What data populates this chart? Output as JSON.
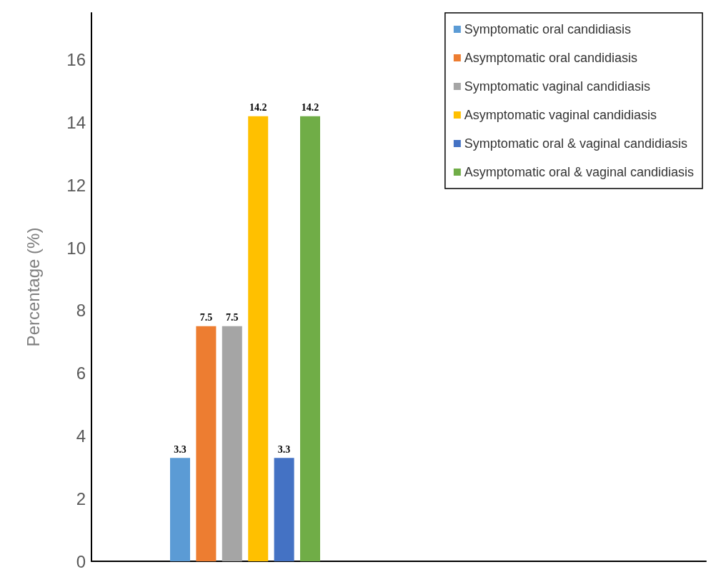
{
  "chart_data": {
    "type": "bar",
    "ylabel": "Percentage (%)",
    "categories": [
      null
    ],
    "series": [
      {
        "name": "Symptomatic oral candidiasis",
        "color": "#5b9bd5",
        "values": [
          3.3
        ]
      },
      {
        "name": "Asymptomatic oral candidiasis",
        "color": "#ed7d31",
        "values": [
          7.5
        ]
      },
      {
        "name": "Symptomatic vaginal candidiasis",
        "color": "#a5a5a5",
        "values": [
          7.5
        ]
      },
      {
        "name": "Asymptomatic vaginal candidiasis",
        "color": "#ffc000",
        "values": [
          14.2
        ]
      },
      {
        "name": "Symptomatic oral & vaginal candidiasis",
        "color": "#4472c4",
        "values": [
          3.3
        ]
      },
      {
        "name": "Asymptomatic oral & vaginal candidiasis",
        "color": "#70ad47",
        "values": [
          14.2
        ]
      }
    ],
    "ylim": [
      0,
      17.5
    ],
    "yticks": [
      0,
      2,
      4,
      6,
      8,
      10,
      12,
      14,
      16
    ],
    "grid": false,
    "legend": "top right",
    "data_labels": true
  }
}
